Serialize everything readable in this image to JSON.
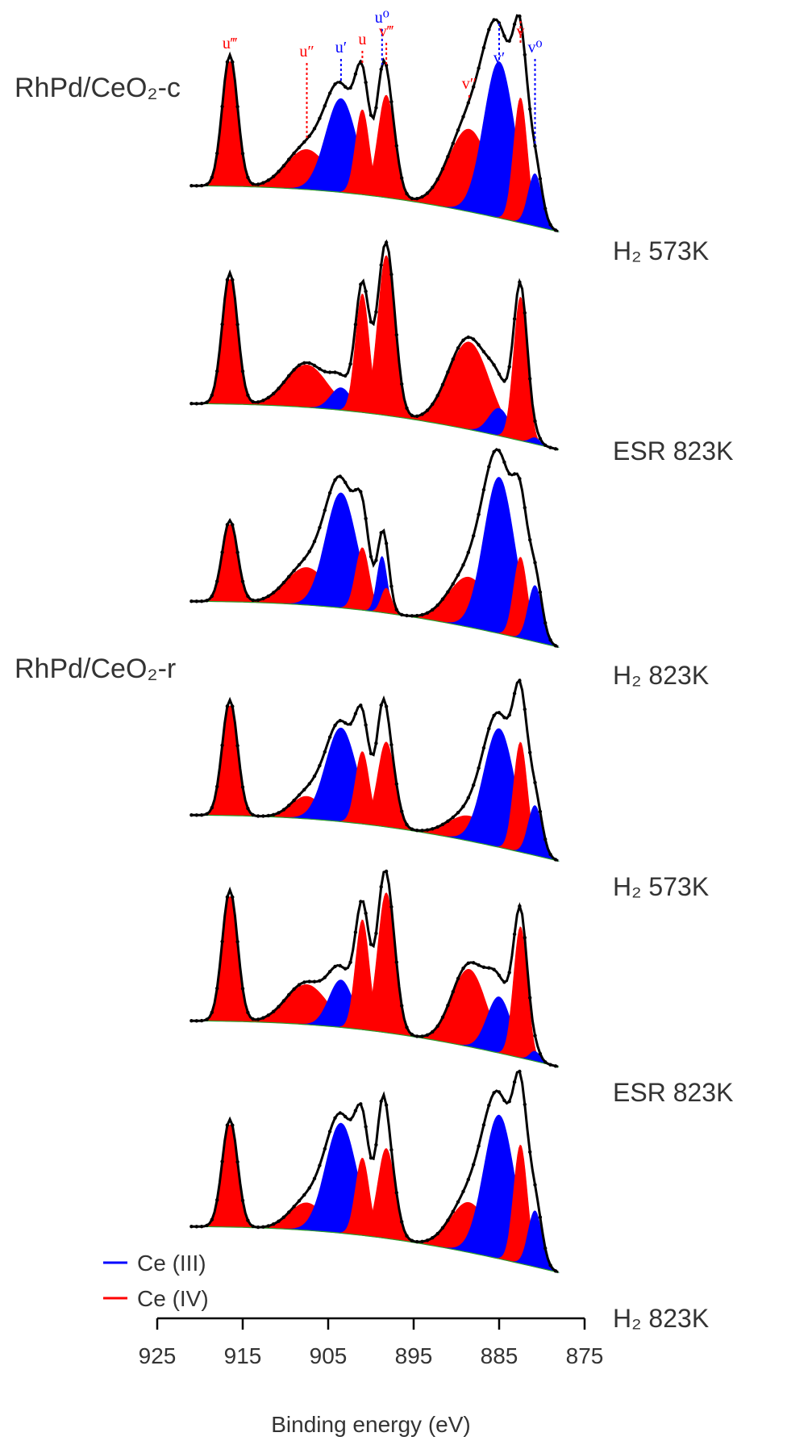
{
  "chart_data": {
    "type": "line",
    "title": "",
    "xlabel": "Binding energy (eV)",
    "ylabel": "",
    "xlim": [
      925,
      875
    ],
    "x_reversed": true,
    "xticks": [
      925,
      915,
      905,
      895,
      885,
      875
    ],
    "xtick_labels": [
      "925",
      "915",
      "905",
      "895",
      "885",
      "875"
    ],
    "sample_labels": [
      "RhPd/CeO₂-c",
      "RhPd/CeO₂-r"
    ],
    "legend": [
      {
        "name": "Ce (III)",
        "color": "#0000ff"
      },
      {
        "name": "Ce (IV)",
        "color": "#ff0000"
      }
    ],
    "peak_markers": [
      {
        "label": "u‴",
        "energy": 916.5,
        "state": "Ce (IV)",
        "color": "#ff0000"
      },
      {
        "label": "u″",
        "energy": 907.5,
        "state": "Ce (IV)",
        "color": "#ff0000"
      },
      {
        "label": "u′",
        "energy": 903.5,
        "state": "Ce (III)",
        "color": "#0000ff"
      },
      {
        "label": "u",
        "energy": 901.0,
        "state": "Ce (IV)",
        "color": "#ff0000"
      },
      {
        "label": "u⁰",
        "energy": 898.7,
        "state": "Ce (III)",
        "color": "#0000ff"
      },
      {
        "label": "v‴",
        "energy": 898.2,
        "state": "Ce (IV)",
        "color": "#ff0000"
      },
      {
        "label": "v″",
        "energy": 888.5,
        "state": "Ce (IV)",
        "color": "#ff0000"
      },
      {
        "label": "v′",
        "energy": 885.0,
        "state": "Ce (III)",
        "color": "#0000ff"
      },
      {
        "label": "v",
        "energy": 882.5,
        "state": "Ce (IV)",
        "color": "#ff0000"
      },
      {
        "label": "v⁰",
        "energy": 880.8,
        "state": "Ce (III)",
        "color": "#0000ff"
      }
    ],
    "series": [
      {
        "sample": "RhPd/CeO₂-c",
        "label": "H₂ 573K",
        "peaks": [
          {
            "state": "Ce (IV)",
            "energy": 916.5,
            "height": 1.0,
            "width": 0.9
          },
          {
            "state": "Ce (IV)",
            "energy": 907.5,
            "height": 0.32,
            "width": 2.4
          },
          {
            "state": "Ce (III)",
            "energy": 903.5,
            "height": 0.75,
            "width": 1.8
          },
          {
            "state": "Ce (IV)",
            "energy": 901.0,
            "height": 0.68,
            "width": 0.8
          },
          {
            "state": "Ce (III)",
            "energy": 898.7,
            "height": 0.25,
            "width": 0.6
          },
          {
            "state": "Ce (IV)",
            "energy": 898.2,
            "height": 0.82,
            "width": 1.0
          },
          {
            "state": "Ce (IV)",
            "energy": 888.5,
            "height": 0.66,
            "width": 2.4
          },
          {
            "state": "Ce (III)",
            "energy": 885.0,
            "height": 1.25,
            "width": 1.8
          },
          {
            "state": "Ce (IV)",
            "energy": 882.5,
            "height": 1.0,
            "width": 0.8
          },
          {
            "state": "Ce (III)",
            "energy": 880.8,
            "height": 0.42,
            "width": 0.8
          }
        ]
      },
      {
        "sample": "RhPd/CeO₂-c",
        "label": "ESR 823K",
        "peaks": [
          {
            "state": "Ce (IV)",
            "energy": 916.5,
            "height": 1.0,
            "width": 0.9
          },
          {
            "state": "Ce (IV)",
            "energy": 907.5,
            "height": 0.34,
            "width": 2.4
          },
          {
            "state": "Ce (III)",
            "energy": 903.5,
            "height": 0.18,
            "width": 1.2
          },
          {
            "state": "Ce (IV)",
            "energy": 901.0,
            "height": 0.95,
            "width": 0.8
          },
          {
            "state": "Ce (III)",
            "energy": 898.7,
            "height": 0.05,
            "width": 0.6
          },
          {
            "state": "Ce (IV)",
            "energy": 898.2,
            "height": 1.28,
            "width": 1.0
          },
          {
            "state": "Ce (IV)",
            "energy": 888.5,
            "height": 0.7,
            "width": 2.4
          },
          {
            "state": "Ce (III)",
            "energy": 885.0,
            "height": 0.22,
            "width": 1.2
          },
          {
            "state": "Ce (IV)",
            "energy": 882.5,
            "height": 1.15,
            "width": 0.8
          },
          {
            "state": "Ce (III)",
            "energy": 880.8,
            "height": 0.05,
            "width": 0.6
          }
        ]
      },
      {
        "sample": "RhPd/CeO₂-c",
        "label": "H₂ 823K",
        "peaks": [
          {
            "state": "Ce (IV)",
            "energy": 916.5,
            "height": 0.62,
            "width": 0.9
          },
          {
            "state": "Ce (IV)",
            "energy": 907.5,
            "height": 0.3,
            "width": 2.4
          },
          {
            "state": "Ce (III)",
            "energy": 903.5,
            "height": 0.92,
            "width": 1.8
          },
          {
            "state": "Ce (IV)",
            "energy": 901.0,
            "height": 0.5,
            "width": 0.8
          },
          {
            "state": "Ce (III)",
            "energy": 898.7,
            "height": 0.45,
            "width": 0.6
          },
          {
            "state": "Ce (IV)",
            "energy": 898.2,
            "height": 0.2,
            "width": 0.6
          },
          {
            "state": "Ce (IV)",
            "energy": 888.5,
            "height": 0.4,
            "width": 2.4
          },
          {
            "state": "Ce (III)",
            "energy": 885.0,
            "height": 1.25,
            "width": 1.8
          },
          {
            "state": "Ce (IV)",
            "energy": 882.5,
            "height": 0.65,
            "width": 0.8
          },
          {
            "state": "Ce (III)",
            "energy": 880.8,
            "height": 0.45,
            "width": 0.8
          }
        ]
      },
      {
        "sample": "RhPd/CeO₂-r",
        "label": "H₂ 573K",
        "peaks": [
          {
            "state": "Ce (IV)",
            "energy": 916.5,
            "height": 0.88,
            "width": 0.9
          },
          {
            "state": "Ce (IV)",
            "energy": 907.5,
            "height": 0.18,
            "width": 1.8
          },
          {
            "state": "Ce (III)",
            "energy": 903.5,
            "height": 0.75,
            "width": 1.8
          },
          {
            "state": "Ce (IV)",
            "energy": 901.0,
            "height": 0.58,
            "width": 0.8
          },
          {
            "state": "Ce (III)",
            "energy": 898.7,
            "height": 0.32,
            "width": 0.6
          },
          {
            "state": "Ce (IV)",
            "energy": 898.2,
            "height": 0.68,
            "width": 1.0
          },
          {
            "state": "Ce (IV)",
            "energy": 888.5,
            "height": 0.2,
            "width": 2.4
          },
          {
            "state": "Ce (III)",
            "energy": 885.0,
            "height": 0.95,
            "width": 1.8
          },
          {
            "state": "Ce (IV)",
            "energy": 882.5,
            "height": 0.88,
            "width": 0.8
          },
          {
            "state": "Ce (III)",
            "energy": 880.8,
            "height": 0.4,
            "width": 0.8
          }
        ]
      },
      {
        "sample": "RhPd/CeO₂-r",
        "label": "ESR 823K",
        "peaks": [
          {
            "state": "Ce (IV)",
            "energy": 916.5,
            "height": 1.0,
            "width": 0.9
          },
          {
            "state": "Ce (IV)",
            "energy": 907.5,
            "height": 0.32,
            "width": 2.4
          },
          {
            "state": "Ce (III)",
            "energy": 903.5,
            "height": 0.38,
            "width": 1.4
          },
          {
            "state": "Ce (IV)",
            "energy": 901.0,
            "height": 0.88,
            "width": 0.8
          },
          {
            "state": "Ce (III)",
            "energy": 898.7,
            "height": 0.15,
            "width": 0.6
          },
          {
            "state": "Ce (IV)",
            "energy": 898.2,
            "height": 1.12,
            "width": 1.0
          },
          {
            "state": "Ce (IV)",
            "energy": 888.5,
            "height": 0.62,
            "width": 2.0
          },
          {
            "state": "Ce (III)",
            "energy": 885.0,
            "height": 0.45,
            "width": 1.4
          },
          {
            "state": "Ce (IV)",
            "energy": 882.5,
            "height": 1.05,
            "width": 0.8
          },
          {
            "state": "Ce (III)",
            "energy": 880.8,
            "height": 0.08,
            "width": 0.6
          }
        ]
      },
      {
        "sample": "RhPd/CeO₂-r",
        "label": "H₂ 823K",
        "peaks": [
          {
            "state": "Ce (IV)",
            "energy": 916.5,
            "height": 0.82,
            "width": 0.9
          },
          {
            "state": "Ce (IV)",
            "energy": 907.5,
            "height": 0.22,
            "width": 2.0
          },
          {
            "state": "Ce (III)",
            "energy": 903.5,
            "height": 0.88,
            "width": 1.8
          },
          {
            "state": "Ce (IV)",
            "energy": 901.0,
            "height": 0.62,
            "width": 0.8
          },
          {
            "state": "Ce (III)",
            "energy": 898.7,
            "height": 0.4,
            "width": 0.6
          },
          {
            "state": "Ce (IV)",
            "energy": 898.2,
            "height": 0.72,
            "width": 1.0
          },
          {
            "state": "Ce (IV)",
            "energy": 888.5,
            "height": 0.4,
            "width": 2.2
          },
          {
            "state": "Ce (III)",
            "energy": 885.0,
            "height": 1.15,
            "width": 1.8
          },
          {
            "state": "Ce (IV)",
            "energy": 882.5,
            "height": 0.95,
            "width": 0.8
          },
          {
            "state": "Ce (III)",
            "energy": 880.8,
            "height": 0.45,
            "width": 0.8
          }
        ]
      }
    ]
  }
}
